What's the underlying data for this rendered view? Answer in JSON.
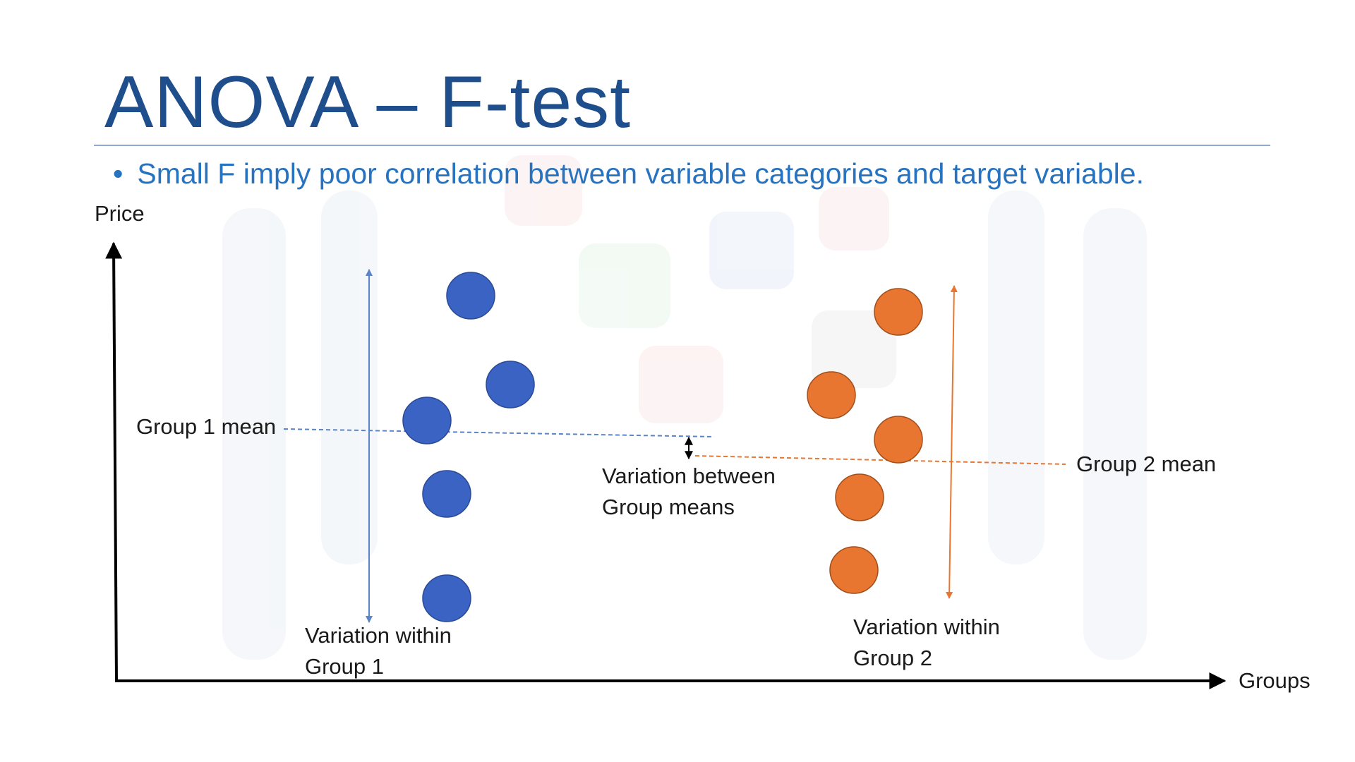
{
  "slide": {
    "title": "ANOVA – F-test",
    "bullet_symbol": "•",
    "bullet_text": "Small F  imply poor correlation between variable categories and target variable."
  },
  "diagram": {
    "y_axis_label": "Price",
    "x_axis_label": "Groups",
    "group1": {
      "color": "#3a63c4",
      "mean_label": "Group 1 mean",
      "variation_label_line1": "Variation within",
      "variation_label_line2": "Group 1"
    },
    "group2": {
      "color": "#e87631",
      "mean_label": "Group 2 mean",
      "variation_label_line1": "Variation within",
      "variation_label_line2": "Group 2"
    },
    "between": {
      "label_line1": "Variation between",
      "label_line2": "Group means"
    }
  },
  "colors": {
    "title": "#1f4e8c",
    "bullet": "#2773c0",
    "axis": "#000000"
  }
}
